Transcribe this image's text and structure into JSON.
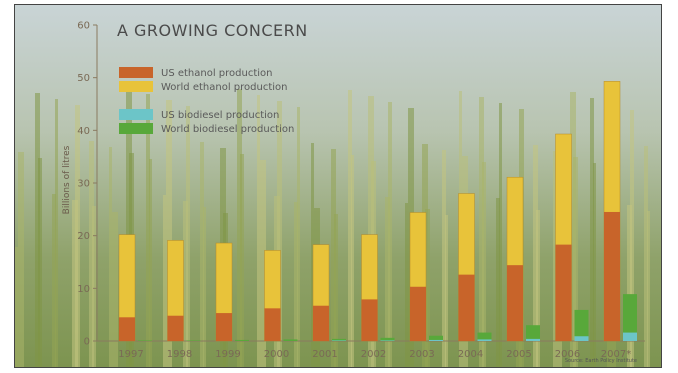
{
  "chart_data": {
    "type": "bar",
    "stacked": true,
    "title": "A GROWING CONCERN",
    "ylabel": "Billions of litres",
    "ylim": [
      0,
      60
    ],
    "yticks": [
      0,
      10,
      20,
      30,
      40,
      50,
      60
    ],
    "categories": [
      "1997",
      "1998",
      "1999",
      "2000",
      "2001",
      "2002",
      "2003",
      "2004",
      "2005",
      "2006",
      "2007*"
    ],
    "ethanol": {
      "us": [
        4.5,
        4.8,
        5.3,
        6.2,
        6.7,
        7.9,
        10.3,
        12.6,
        14.4,
        18.3,
        24.5
      ],
      "world": [
        20.2,
        19.1,
        18.6,
        17.2,
        18.3,
        20.2,
        24.4,
        28.0,
        31.1,
        39.3,
        49.3
      ]
    },
    "biodiesel": {
      "us": [
        0.0,
        0.0,
        0.0,
        0.0,
        0.1,
        0.1,
        0.2,
        0.3,
        0.4,
        0.9,
        1.6
      ],
      "world": [
        0.1,
        0.1,
        0.2,
        0.3,
        0.4,
        0.6,
        1.0,
        1.6,
        3.0,
        5.9,
        8.9
      ]
    },
    "legend": [
      {
        "name": "US ethanol production",
        "color": "#c8642a"
      },
      {
        "name": "World ethanol production",
        "color": "#e8c33a"
      },
      {
        "name": "US biodiesel production",
        "color": "#6cc5c8"
      },
      {
        "name": "World biodiesel production",
        "color": "#58a83a"
      }
    ],
    "source": "Source: Earth Policy Institute",
    "grid": false
  }
}
